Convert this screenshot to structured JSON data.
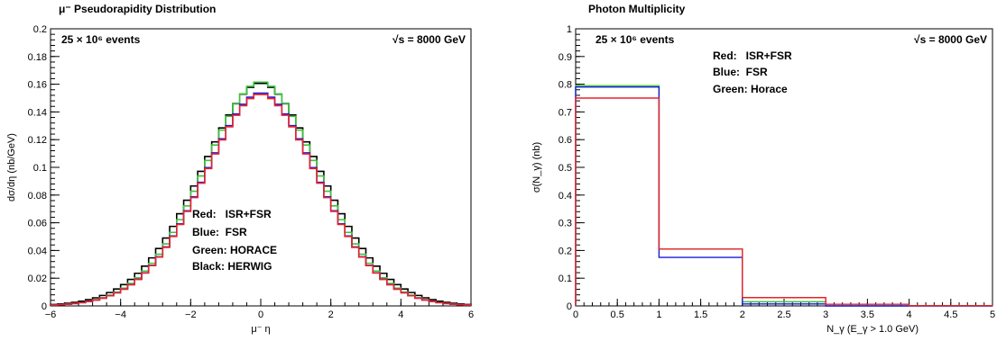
{
  "chart_data": [
    {
      "type": "line",
      "title": "μ⁻ Pseudorapidity Distribution",
      "xlabel": "μ⁻ η",
      "ylabel": "dσ/dη (nb/GeV)",
      "xlim": [
        -6,
        6
      ],
      "ylim": [
        0,
        0.2
      ],
      "xticks": [
        -6,
        -4,
        -2,
        0,
        2,
        4,
        6
      ],
      "yticks": [
        0,
        0.02,
        0.04,
        0.06,
        0.08,
        0.1,
        0.12,
        0.14,
        0.16,
        0.18,
        0.2
      ],
      "xtick_labels": [
        "−6",
        "−4",
        "−2",
        "0",
        "2",
        "4",
        "6"
      ],
      "ytick_labels": [
        "0",
        "0.02",
        "0.04",
        "0.06",
        "0.08",
        "0.1",
        "0.12",
        "0.14",
        "0.16",
        "0.18",
        "0.2"
      ],
      "grid": false,
      "events_text": "25 × 10⁶ events",
      "energy_text": "√s = 8000 GeV",
      "legend": [
        {
          "label": "Red:   ISR+FSR",
          "color": "#e8222a"
        },
        {
          "label": "Blue:  FSR",
          "color": "#1a1adb"
        },
        {
          "label": "Green: HORACE",
          "color": "#3cc43c"
        },
        {
          "label": "Black: HERWIG",
          "color": "#000000"
        }
      ],
      "legend_position": "lower-center",
      "binning": {
        "start": -6,
        "width": 0.2,
        "count": 60
      },
      "series": [
        {
          "color": "#000000",
          "peak": 0.161,
          "width": 1.69,
          "power": 1.85
        },
        {
          "color": "#3cc43c",
          "peak": 0.162,
          "width": 1.62,
          "power": 1.85
        },
        {
          "color": "#1a1adb",
          "peak": 0.154,
          "width": 1.62,
          "power": 1.85
        },
        {
          "color": "#e8222a",
          "peak": 0.153,
          "width": 1.62,
          "power": 1.85
        }
      ]
    },
    {
      "type": "bar",
      "title": "Photon Multiplicity",
      "xlabel": "N_γ (E_γ > 1.0 GeV)",
      "ylabel": "σ(N_γ) (nb)",
      "xlim": [
        0,
        5
      ],
      "ylim": [
        0,
        1
      ],
      "xticks": [
        0,
        0.5,
        1,
        1.5,
        2,
        2.5,
        3,
        3.5,
        4,
        4.5,
        5
      ],
      "yticks": [
        0,
        0.1,
        0.2,
        0.3,
        0.4,
        0.5,
        0.6,
        0.7,
        0.8,
        0.9,
        1
      ],
      "xtick_labels": [
        "0",
        "0.5",
        "1",
        "1.5",
        "2",
        "2.5",
        "3",
        "3.5",
        "4",
        "4.5",
        "5"
      ],
      "ytick_labels": [
        "0",
        "0.1",
        "0.2",
        "0.3",
        "0.4",
        "0.5",
        "0.6",
        "0.7",
        "0.8",
        "0.9",
        "1"
      ],
      "grid": false,
      "events_text": "25 × 10⁶ events",
      "energy_text": "√s = 8000 GeV",
      "legend": [
        {
          "label": "Red:   ISR+FSR",
          "color": "#e8222a"
        },
        {
          "label": "Blue:  FSR",
          "color": "#1a1adb"
        },
        {
          "label": "Green: Horace",
          "color": "#3cc43c"
        }
      ],
      "legend_position": "top-center",
      "bin_edges": [
        0,
        1,
        2,
        3,
        4,
        5
      ],
      "series": [
        {
          "color": "#3cc43c",
          "values": [
            0.795,
            0.205,
            0.015,
            0.0,
            0.0
          ]
        },
        {
          "color": "#1a1adb",
          "values": [
            0.79,
            0.175,
            0.007,
            0.0,
            0.0
          ]
        },
        {
          "color": "#e8222a",
          "values": [
            0.75,
            0.205,
            0.03,
            0.006,
            0.001
          ]
        }
      ]
    }
  ]
}
